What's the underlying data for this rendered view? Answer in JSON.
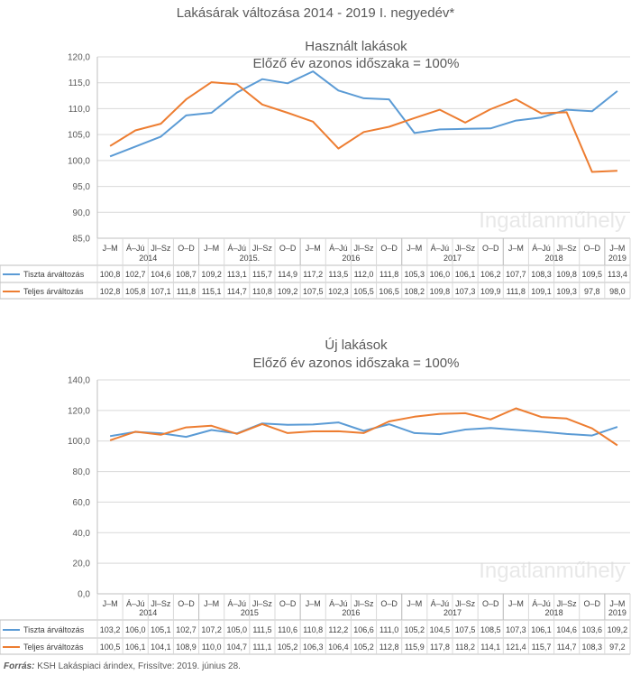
{
  "title": "Lakásárak változása 2014 - 2019 I. negyedév*",
  "watermark": "Ingatlanműhely",
  "source_label": "Forrás:",
  "source_text": "KSH Lakáspiaci árindex, Frissítve: 2019. június 28.",
  "colors": {
    "series1": "#5b9bd5",
    "series2": "#ed7d31",
    "grid": "#d9d9d9"
  },
  "chart_data": [
    {
      "type": "line",
      "title": "Használt lakások",
      "subtitle": "Előző év azonos időszaka = 100%",
      "quarters": [
        "J–M",
        "Á–Jú",
        "Jl–Sz",
        "O–D",
        "J–M",
        "Á–Jú",
        "Jl–Sz",
        "O–D",
        "J–M",
        "Á–Jú",
        "Jl–Sz",
        "O–D",
        "J–M",
        "Á–Jú",
        "Jl–Sz",
        "O–D",
        "J–M",
        "Á–Jú",
        "Jl–Sz",
        "O–D",
        "J–M"
      ],
      "years": [
        "2014",
        "2015.",
        "2016",
        "2017",
        "2018",
        "2019"
      ],
      "y_ticks": [
        "120,0",
        "115,0",
        "110,0",
        "105,0",
        "100,0",
        "95,0",
        "90,0",
        "85,0"
      ],
      "ylim": [
        85,
        120
      ],
      "grid": true,
      "series": [
        {
          "name": "Tiszta árváltozás",
          "color": "#5b9bd5",
          "values": [
            100.8,
            102.7,
            104.6,
            108.7,
            109.2,
            113.1,
            115.7,
            114.9,
            117.2,
            113.5,
            112.0,
            111.8,
            105.3,
            106.0,
            106.1,
            106.2,
            107.7,
            108.3,
            109.8,
            109.5,
            113.4
          ],
          "labels": [
            "100,8",
            "102,7",
            "104,6",
            "108,7",
            "109,2",
            "113,1",
            "115,7",
            "114,9",
            "117,2",
            "113,5",
            "112,0",
            "111,8",
            "105,3",
            "106,0",
            "106,1",
            "106,2",
            "107,7",
            "108,3",
            "109,8",
            "109,5",
            "113,4"
          ]
        },
        {
          "name": "Teljes árváltozás",
          "color": "#ed7d31",
          "values": [
            102.8,
            105.8,
            107.1,
            111.8,
            115.1,
            114.7,
            110.8,
            109.2,
            107.5,
            102.3,
            105.5,
            106.5,
            108.2,
            109.8,
            107.3,
            109.9,
            111.8,
            109.1,
            109.3,
            97.8,
            98.0
          ],
          "labels": [
            "102,8",
            "105,8",
            "107,1",
            "111,8",
            "115,1",
            "114,7",
            "110,8",
            "109,2",
            "107,5",
            "102,3",
            "105,5",
            "106,5",
            "108,2",
            "109,8",
            "107,3",
            "109,9",
            "111,8",
            "109,1",
            "109,3",
            "97,8",
            "98,0"
          ]
        }
      ]
    },
    {
      "type": "line",
      "title": "Új lakások",
      "subtitle": "Előző év azonos időszaka = 100%",
      "quarters": [
        "J–M",
        "Á–Jú",
        "Jl–Sz",
        "O–D",
        "J–M",
        "Á–Jú",
        "Jl–Sz",
        "O–D",
        "J–M",
        "Á–Jú",
        "Jl–Sz",
        "O–D",
        "J–M",
        "Á–Jú",
        "Jl–Sz",
        "O–D",
        "J–M",
        "Á–Jú",
        "Jl–Sz",
        "O–D",
        "J–M"
      ],
      "years": [
        "2014",
        "2015",
        "2016",
        "2017",
        "2018",
        "2019"
      ],
      "y_ticks": [
        "140,0",
        "120,0",
        "100,0",
        "80,0",
        "60,0",
        "40,0",
        "20,0",
        "0,0"
      ],
      "ylim": [
        0,
        140
      ],
      "grid": true,
      "series": [
        {
          "name": "Tiszta árváltozás",
          "color": "#5b9bd5",
          "values": [
            103.2,
            106.0,
            105.1,
            102.7,
            107.2,
            105.0,
            111.5,
            110.6,
            110.8,
            112.2,
            106.6,
            111.0,
            105.2,
            104.5,
            107.5,
            108.5,
            107.3,
            106.1,
            104.6,
            103.6,
            109.2
          ],
          "labels": [
            "103,2",
            "106,0",
            "105,1",
            "102,7",
            "107,2",
            "105,0",
            "111,5",
            "110,6",
            "110,8",
            "112,2",
            "106,6",
            "111,0",
            "105,2",
            "104,5",
            "107,5",
            "108,5",
            "107,3",
            "106,1",
            "104,6",
            "103,6",
            "109,2"
          ]
        },
        {
          "name": "Teljes árváltozás",
          "color": "#ed7d31",
          "values": [
            100.5,
            106.1,
            104.1,
            108.9,
            110.0,
            104.7,
            111.1,
            105.2,
            106.3,
            106.4,
            105.2,
            112.8,
            115.9,
            117.8,
            118.2,
            114.1,
            121.4,
            115.7,
            114.7,
            108.3,
            97.2
          ],
          "labels": [
            "100,5",
            "106,1",
            "104,1",
            "108,9",
            "110,0",
            "104,7",
            "111,1",
            "105,2",
            "106,3",
            "106,4",
            "105,2",
            "112,8",
            "115,9",
            "117,8",
            "118,2",
            "114,1",
            "121,4",
            "115,7",
            "114,7",
            "108,3",
            "97,2"
          ]
        }
      ]
    }
  ]
}
